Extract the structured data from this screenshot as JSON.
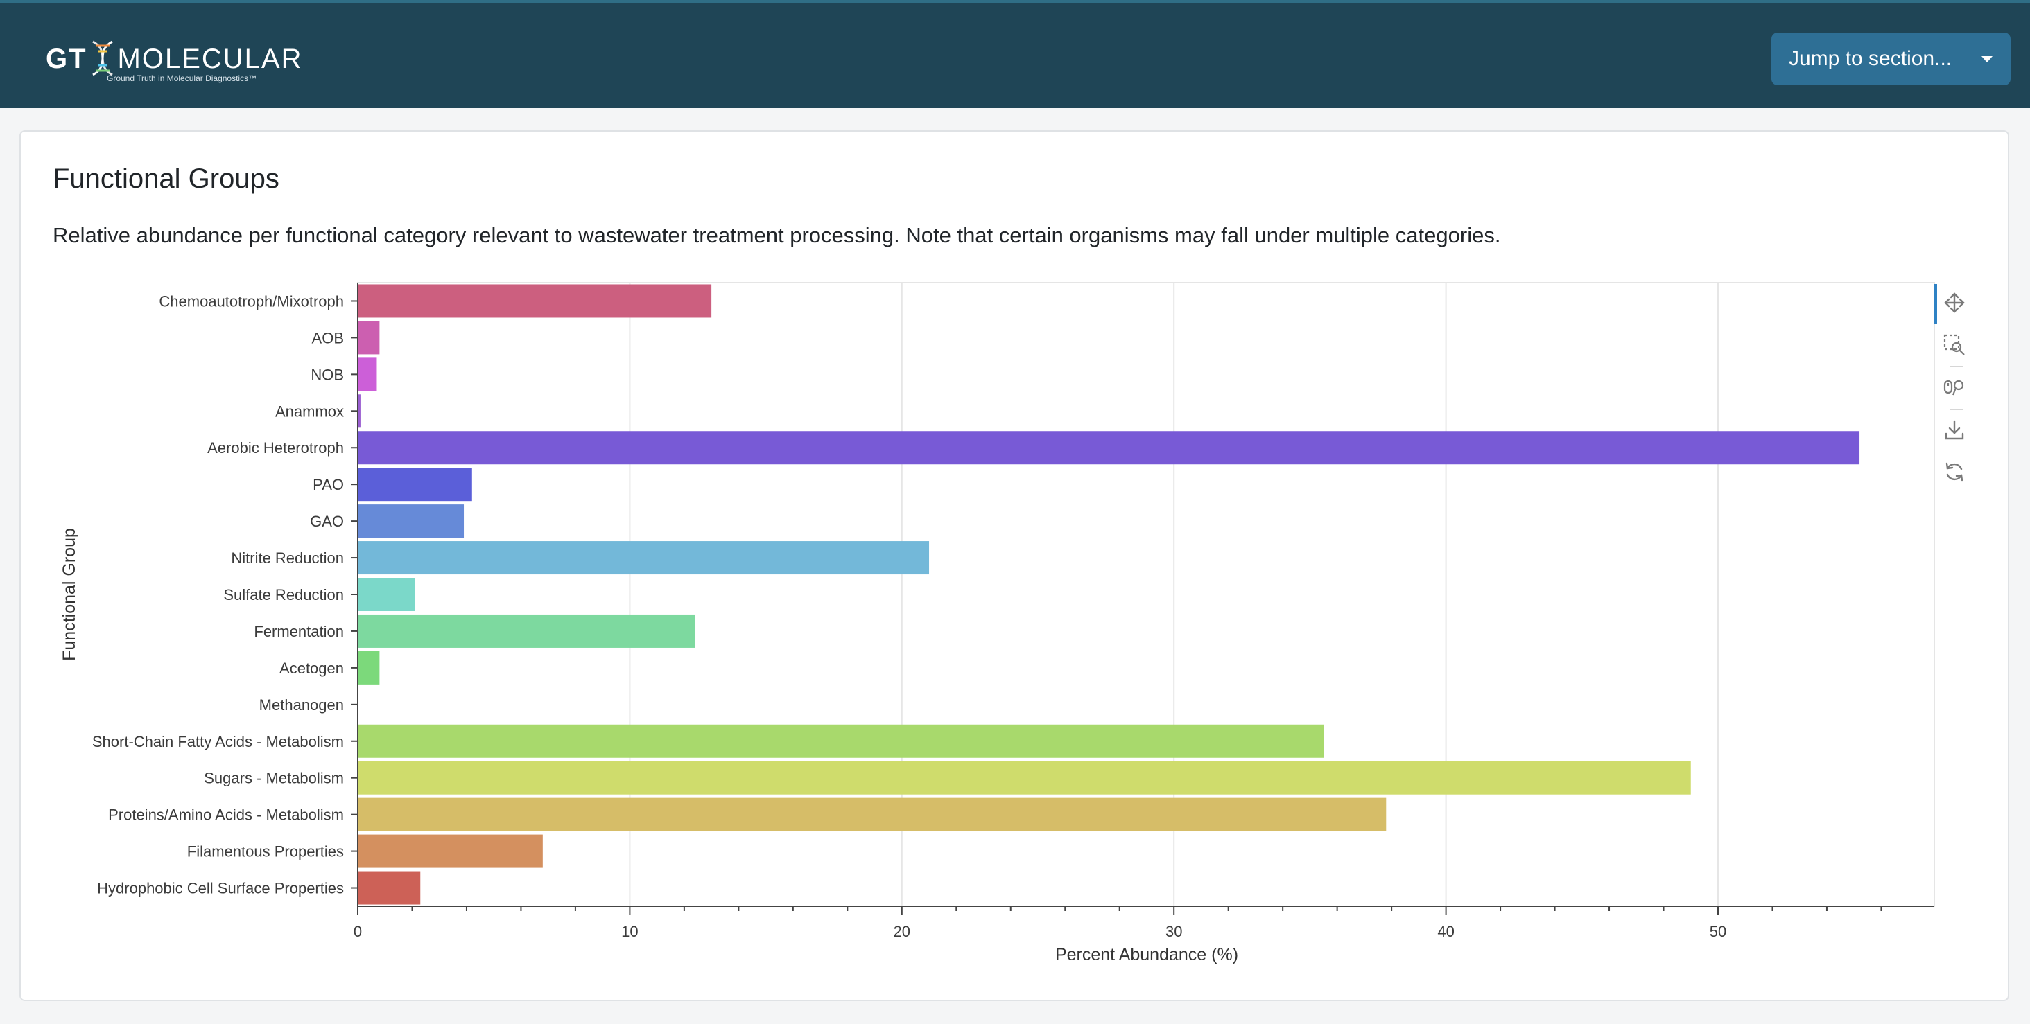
{
  "header": {
    "logo": {
      "brand_left": "GT",
      "brand_right": "MOLECULAR",
      "tagline": "Ground Truth in Molecular Diagnostics™"
    },
    "jump_button_label": "Jump to section..."
  },
  "section": {
    "title": "Functional Groups",
    "description": "Relative abundance per functional category relevant to wastewater treatment processing. Note that certain organisms may fall under multiple categories."
  },
  "toolbar": {
    "tools": [
      "pan-icon",
      "box-zoom-icon",
      "wheel-zoom-icon",
      "save-icon",
      "reset-icon"
    ]
  },
  "chart_data": {
    "type": "bar",
    "orientation": "horizontal",
    "categories": [
      "Chemoautotroph/Mixotroph",
      "AOB",
      "NOB",
      "Anammox",
      "Aerobic Heterotroph",
      "PAO",
      "GAO",
      "Nitrite Reduction",
      "Sulfate Reduction",
      "Fermentation",
      "Acetogen",
      "Methanogen",
      "Short-Chain Fatty Acids - Metabolism",
      "Sugars - Metabolism",
      "Proteins/Amino Acids - Metabolism",
      "Filamentous Properties",
      "Hydrophobic Cell Surface Properties"
    ],
    "values": [
      13.0,
      0.8,
      0.7,
      0.1,
      55.2,
      4.2,
      3.9,
      21.0,
      2.1,
      12.4,
      0.8,
      0.0,
      35.5,
      49.0,
      37.8,
      6.8,
      2.3
    ],
    "colors": [
      "#cc5f7f",
      "#cc5fb0",
      "#cc5fd8",
      "#9a5fd0",
      "#785ad6",
      "#5b5fd9",
      "#668ad8",
      "#73b8d9",
      "#7bd8c9",
      "#7dd99f",
      "#7cd97b",
      "#9cd96c",
      "#a8d96c",
      "#cfdc6c",
      "#d6bd68",
      "#d4905f",
      "#cd6157"
    ],
    "xlabel": "Percent Abundance (%)",
    "ylabel": "Functional Group",
    "xlim": [
      0,
      58
    ],
    "xticks": [
      0,
      10,
      20,
      30,
      40,
      50
    ],
    "grid": "vertical"
  }
}
